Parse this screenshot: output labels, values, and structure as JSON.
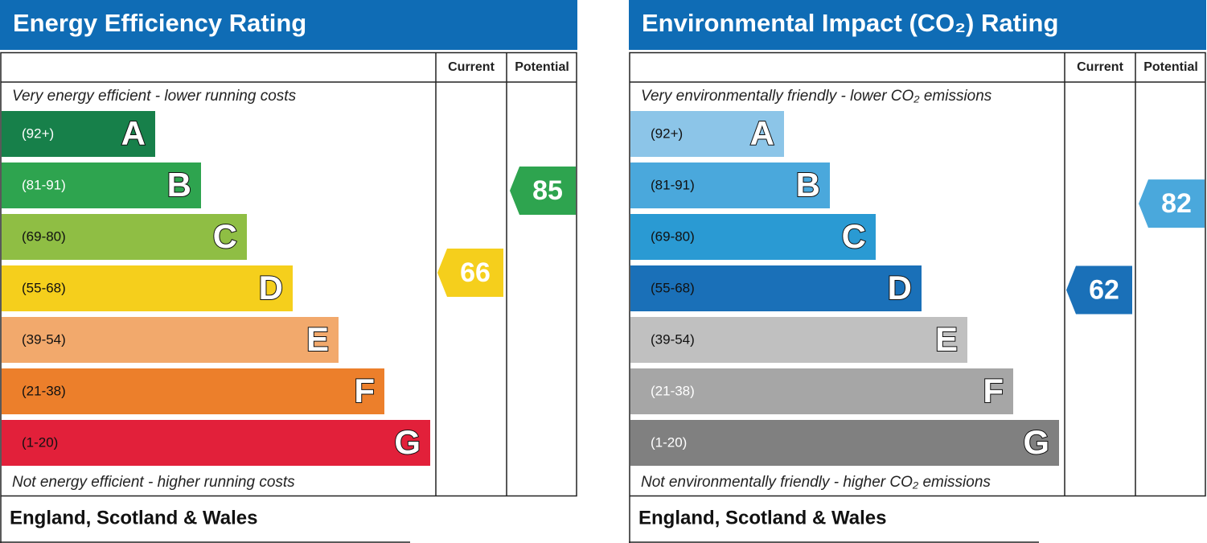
{
  "panels": [
    {
      "title": "Energy Efficiency Rating",
      "header_current": "Current",
      "header_potential": "Potential",
      "top_note": "Very energy efficient - lower running costs",
      "bottom_note": "Not energy efficient - higher running costs",
      "footer": "England, Scotland & Wales",
      "bands": [
        {
          "range": "(92+)",
          "letter": "A",
          "color": "#17804a",
          "text_color": "#ffffff"
        },
        {
          "range": "(81-91)",
          "letter": "B",
          "color": "#2ea44f",
          "text_color": "#ffffff"
        },
        {
          "range": "(69-80)",
          "letter": "C",
          "color": "#8fbe44",
          "text_color": "#111111"
        },
        {
          "range": "(55-68)",
          "letter": "D",
          "color": "#f5cf1c",
          "text_color": "#111111"
        },
        {
          "range": "(39-54)",
          "letter": "E",
          "color": "#f2a96c",
          "text_color": "#111111"
        },
        {
          "range": "(21-38)",
          "letter": "F",
          "color": "#ec7f2b",
          "text_color": "#111111"
        },
        {
          "range": "(1-20)",
          "letter": "G",
          "color": "#e2203a",
          "text_color": "#111111"
        }
      ],
      "current": {
        "value": 66,
        "color": "#f5cf1c"
      },
      "potential": {
        "value": 85,
        "color": "#2ea44f"
      }
    },
    {
      "title": "Environmental Impact (CO₂) Rating",
      "header_current": "Current",
      "header_potential": "Potential",
      "top_note": "Very environmentally friendly - lower CO₂ emissions",
      "bottom_note": "Not environmentally friendly - higher CO₂ emissions",
      "footer": "England, Scotland & Wales",
      "bands": [
        {
          "range": "(92+)",
          "letter": "A",
          "color": "#8cc5e8",
          "text_color": "#111111"
        },
        {
          "range": "(81-91)",
          "letter": "B",
          "color": "#4aa8dc",
          "text_color": "#111111"
        },
        {
          "range": "(69-80)",
          "letter": "C",
          "color": "#2a9ad3",
          "text_color": "#111111"
        },
        {
          "range": "(55-68)",
          "letter": "D",
          "color": "#1a70b8",
          "text_color": "#111111"
        },
        {
          "range": "(39-54)",
          "letter": "E",
          "color": "#c0c0c0",
          "text_color": "#111111"
        },
        {
          "range": "(21-38)",
          "letter": "F",
          "color": "#a6a6a6",
          "text_color": "#ffffff"
        },
        {
          "range": "(1-20)",
          "letter": "G",
          "color": "#808080",
          "text_color": "#ffffff"
        }
      ],
      "current": {
        "value": 62,
        "color": "#1a70b8"
      },
      "potential": {
        "value": 82,
        "color": "#4aa8dc"
      }
    }
  ]
}
